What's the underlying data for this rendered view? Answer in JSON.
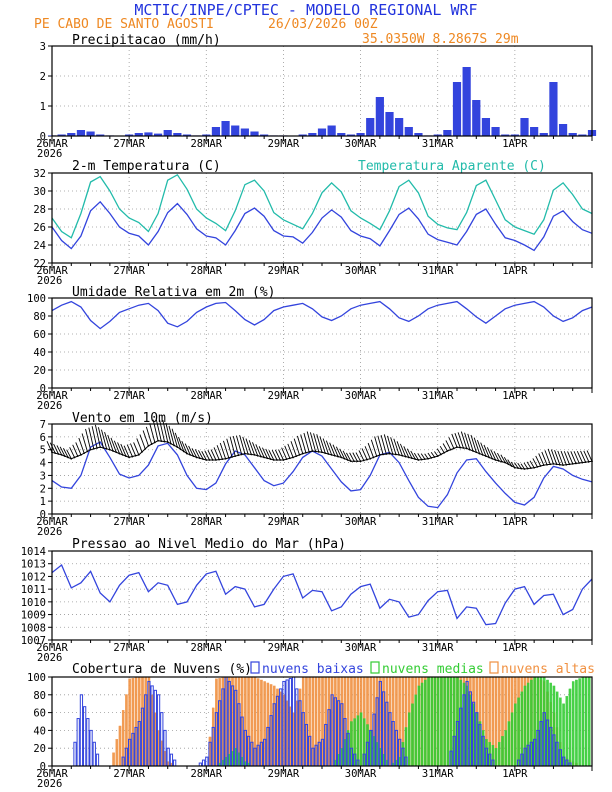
{
  "header": {
    "title": "MCTIC/INPE/CPTEC - MODELO REGIONAL WRF",
    "location": "PE CABO DE SANTO AGOSTI",
    "run": "26/03/2026 00Z",
    "coords": "35.0350W 8.2867S 29m"
  },
  "colors": {
    "blue": "#3344dd",
    "cyan": "#22bbaa",
    "orange": "#f09040",
    "green": "#33cc33",
    "title_blue": "#2233dd",
    "title_orange": "#ee8822"
  },
  "x_axis": {
    "labels": [
      "26MAR",
      "27MAR",
      "28MAR",
      "29MAR",
      "30MAR",
      "31MAR",
      "1APR"
    ],
    "year": "2026"
  },
  "chart_data": [
    {
      "type": "bar",
      "title": "Precipitacao (mm/h)",
      "x_unit": "hours since 26/03/2026 00Z (3-hourly)",
      "ylim": [
        0,
        3
      ],
      "yticks": [
        "0",
        "1",
        "2",
        "3"
      ],
      "x": [
        0,
        3,
        6,
        9,
        12,
        15,
        18,
        21,
        24,
        27,
        30,
        33,
        36,
        39,
        42,
        45,
        48,
        51,
        54,
        57,
        60,
        63,
        66,
        69,
        72,
        75,
        78,
        81,
        84,
        87,
        90,
        93,
        96,
        99,
        102,
        105,
        108,
        111,
        114,
        117,
        120,
        123,
        126,
        129,
        132,
        135,
        138,
        141,
        144,
        147,
        150,
        153,
        156,
        159,
        162,
        165,
        168
      ],
      "values": [
        0.02,
        0.05,
        0.1,
        0.2,
        0.15,
        0.05,
        0.02,
        0.0,
        0.05,
        0.1,
        0.12,
        0.08,
        0.2,
        0.1,
        0.05,
        0.02,
        0.05,
        0.3,
        0.5,
        0.35,
        0.25,
        0.15,
        0.05,
        0.02,
        0.02,
        0.0,
        0.05,
        0.1,
        0.25,
        0.35,
        0.1,
        0.05,
        0.1,
        0.6,
        1.3,
        0.8,
        0.6,
        0.3,
        0.1,
        0.02,
        0.05,
        0.2,
        1.8,
        2.3,
        1.2,
        0.6,
        0.3,
        0.05,
        0.05,
        0.6,
        0.3,
        0.1,
        1.8,
        0.4,
        0.1,
        0.05,
        0.2
      ]
    },
    {
      "type": "line",
      "title": "2-m Temperatura (C)",
      "ylim": [
        22,
        32
      ],
      "yticks": [
        "22",
        "24",
        "26",
        "28",
        "30",
        "32"
      ],
      "x": [
        0,
        3,
        6,
        9,
        12,
        15,
        18,
        21,
        24,
        27,
        30,
        33,
        36,
        39,
        42,
        45,
        48,
        51,
        54,
        57,
        60,
        63,
        66,
        69,
        72,
        75,
        78,
        81,
        84,
        87,
        90,
        93,
        96,
        99,
        102,
        105,
        108,
        111,
        114,
        117,
        120,
        123,
        126,
        129,
        132,
        135,
        138,
        141,
        144,
        147,
        150,
        153,
        156,
        159,
        162,
        165,
        168
      ],
      "series": [
        {
          "name": "2-m Temperatura (C)",
          "color": "#3344dd",
          "values": [
            26.0,
            24.5,
            23.6,
            25.0,
            27.8,
            28.8,
            27.5,
            26.0,
            25.3,
            25.0,
            24.0,
            25.5,
            27.6,
            28.6,
            27.4,
            25.8,
            25.0,
            24.8,
            24.0,
            25.6,
            27.5,
            28.1,
            27.2,
            25.6,
            25.0,
            24.9,
            24.2,
            25.4,
            27.0,
            27.9,
            27.1,
            25.6,
            25.0,
            24.7,
            23.9,
            25.6,
            27.4,
            28.1,
            26.9,
            25.2,
            24.6,
            24.3,
            24.0,
            25.5,
            27.4,
            28.0,
            26.3,
            24.8,
            24.5,
            24.0,
            23.4,
            24.9,
            27.2,
            27.8,
            26.6,
            25.7,
            25.3
          ]
        },
        {
          "name": "Temperatura Aparente (C)",
          "color": "#22bbaa",
          "values": [
            27.0,
            25.5,
            24.8,
            27.5,
            31.0,
            31.6,
            30.0,
            28.0,
            27.0,
            26.5,
            25.5,
            27.5,
            31.2,
            31.8,
            30.2,
            28.0,
            27.0,
            26.4,
            25.6,
            27.8,
            30.7,
            31.2,
            30.0,
            27.6,
            26.8,
            26.3,
            25.8,
            27.5,
            29.8,
            30.9,
            29.9,
            27.8,
            27.0,
            26.4,
            25.7,
            27.8,
            30.5,
            31.2,
            29.8,
            27.2,
            26.3,
            25.9,
            25.7,
            27.6,
            30.6,
            31.2,
            29.0,
            26.8,
            26.0,
            25.6,
            25.2,
            26.8,
            30.1,
            30.9,
            29.6,
            28.0,
            27.5
          ]
        }
      ]
    },
    {
      "type": "line",
      "title": "Umidade Relativa em 2m (%)",
      "ylim": [
        0,
        100
      ],
      "yticks": [
        "0",
        "20",
        "40",
        "60",
        "80",
        "100"
      ],
      "x": [
        0,
        3,
        6,
        9,
        12,
        15,
        18,
        21,
        24,
        27,
        30,
        33,
        36,
        39,
        42,
        45,
        48,
        51,
        54,
        57,
        60,
        63,
        66,
        69,
        72,
        75,
        78,
        81,
        84,
        87,
        90,
        93,
        96,
        99,
        102,
        105,
        108,
        111,
        114,
        117,
        120,
        123,
        126,
        129,
        132,
        135,
        138,
        141,
        144,
        147,
        150,
        153,
        156,
        159,
        162,
        165,
        168
      ],
      "series": [
        {
          "name": "Umidade Relativa",
          "color": "#3344dd",
          "values": [
            86,
            92,
            96,
            90,
            75,
            66,
            74,
            84,
            88,
            92,
            94,
            86,
            72,
            68,
            74,
            84,
            90,
            94,
            95,
            86,
            76,
            70,
            76,
            86,
            90,
            92,
            94,
            88,
            79,
            75,
            80,
            88,
            92,
            94,
            96,
            88,
            78,
            74,
            80,
            88,
            92,
            94,
            96,
            88,
            79,
            72,
            80,
            88,
            92,
            94,
            96,
            90,
            80,
            74,
            78,
            86,
            90
          ]
        }
      ]
    },
    {
      "type": "line",
      "title": "Vento em 10m (m/s)",
      "ylim": [
        0,
        7
      ],
      "yticks": [
        "0",
        "1",
        "2",
        "3",
        "4",
        "5",
        "6",
        "7"
      ],
      "x": [
        0,
        3,
        6,
        9,
        12,
        15,
        18,
        21,
        24,
        27,
        30,
        33,
        36,
        39,
        42,
        45,
        48,
        51,
        54,
        57,
        60,
        63,
        66,
        69,
        72,
        75,
        78,
        81,
        84,
        87,
        90,
        93,
        96,
        99,
        102,
        105,
        108,
        111,
        114,
        117,
        120,
        123,
        126,
        129,
        132,
        135,
        138,
        141,
        144,
        147,
        150,
        153,
        156,
        159,
        162,
        165,
        168
      ],
      "series": [
        {
          "name": "Velocidade do vento",
          "color": "#3344dd",
          "values": [
            2.6,
            2.1,
            2.0,
            3.0,
            5.2,
            5.6,
            4.4,
            3.1,
            2.8,
            3.0,
            3.8,
            5.3,
            5.5,
            4.6,
            3.0,
            2.0,
            1.9,
            2.4,
            3.9,
            4.9,
            4.6,
            3.6,
            2.6,
            2.2,
            2.4,
            3.3,
            4.4,
            4.9,
            4.5,
            3.5,
            2.5,
            1.8,
            1.9,
            3.0,
            4.6,
            4.8,
            4.0,
            2.6,
            1.3,
            0.6,
            0.5,
            1.5,
            3.2,
            4.2,
            4.3,
            3.3,
            2.4,
            1.6,
            0.9,
            0.7,
            1.3,
            2.8,
            3.7,
            3.5,
            3.0,
            2.7,
            2.5
          ]
        },
        {
          "name": "Vetor do vento",
          "color": "#000000",
          "values": [
            4.8,
            4.6,
            4.3,
            4.6,
            5.0,
            5.2,
            5.0,
            4.7,
            4.4,
            4.6,
            5.3,
            5.7,
            5.6,
            5.2,
            4.7,
            4.4,
            4.2,
            4.2,
            4.3,
            4.5,
            4.7,
            4.6,
            4.4,
            4.2,
            4.2,
            4.4,
            4.7,
            4.9,
            4.8,
            4.6,
            4.4,
            4.1,
            4.1,
            4.3,
            4.6,
            4.7,
            4.6,
            4.4,
            4.2,
            4.3,
            4.5,
            4.9,
            5.2,
            5.1,
            4.8,
            4.5,
            4.2,
            4.0,
            3.6,
            3.5,
            3.6,
            3.8,
            3.9,
            3.8,
            3.9,
            4.0,
            4.1
          ]
        }
      ]
    },
    {
      "type": "line",
      "title": "Pressao ao Nivel Medio do Mar (hPa)",
      "ylim": [
        1007,
        1014
      ],
      "yticks": [
        "1007",
        "1008",
        "1009",
        "1010",
        "1011",
        "1012",
        "1013",
        "1014"
      ],
      "x": [
        0,
        3,
        6,
        9,
        12,
        15,
        18,
        21,
        24,
        27,
        30,
        33,
        36,
        39,
        42,
        45,
        48,
        51,
        54,
        57,
        60,
        63,
        66,
        69,
        72,
        75,
        78,
        81,
        84,
        87,
        90,
        93,
        96,
        99,
        102,
        105,
        108,
        111,
        114,
        117,
        120,
        123,
        126,
        129,
        132,
        135,
        138,
        141,
        144,
        147,
        150,
        153,
        156,
        159,
        162,
        165,
        168
      ],
      "series": [
        {
          "name": "Pressao",
          "color": "#3344dd",
          "values": [
            1012.3,
            1012.9,
            1011.1,
            1011.5,
            1012.4,
            1010.7,
            1010.0,
            1011.3,
            1012.1,
            1012.3,
            1010.8,
            1011.5,
            1011.3,
            1009.8,
            1010.0,
            1011.3,
            1012.2,
            1012.4,
            1010.6,
            1011.2,
            1011.0,
            1009.6,
            1009.8,
            1011.0,
            1012.0,
            1012.2,
            1010.3,
            1010.9,
            1010.8,
            1009.3,
            1009.6,
            1010.6,
            1011.2,
            1011.4,
            1009.5,
            1010.2,
            1010.0,
            1008.8,
            1009.0,
            1010.1,
            1010.8,
            1010.9,
            1008.7,
            1009.6,
            1009.5,
            1008.2,
            1008.3,
            1009.9,
            1011.0,
            1011.2,
            1009.8,
            1010.5,
            1010.6,
            1009.0,
            1009.4,
            1011.0,
            1011.8
          ]
        }
      ]
    },
    {
      "type": "bar",
      "title": "Cobertura de Nuvens (%)",
      "ylim": [
        0,
        100
      ],
      "yticks": [
        "0",
        "20",
        "40",
        "60",
        "80",
        "100"
      ],
      "legend": [
        "nuvens baixas",
        "nuvens medias",
        "nuvens altas"
      ],
      "x": [
        0,
        3,
        6,
        9,
        12,
        15,
        18,
        21,
        24,
        27,
        30,
        33,
        36,
        39,
        42,
        45,
        48,
        51,
        54,
        57,
        60,
        63,
        66,
        69,
        72,
        75,
        78,
        81,
        84,
        87,
        90,
        93,
        96,
        99,
        102,
        105,
        108,
        111,
        114,
        117,
        120,
        123,
        126,
        129,
        132,
        135,
        138,
        141,
        144,
        147,
        150,
        153,
        156,
        159,
        162,
        165,
        168
      ],
      "series": [
        {
          "name": "nuvens altas",
          "color": "#f09040",
          "values": [
            0,
            0,
            0,
            0,
            0,
            0,
            0,
            45,
            98,
            100,
            100,
            40,
            5,
            0,
            0,
            0,
            0,
            98,
            100,
            100,
            100,
            100,
            95,
            90,
            80,
            60,
            100,
            100,
            100,
            100,
            100,
            100,
            100,
            100,
            100,
            100,
            100,
            100,
            100,
            100,
            100,
            100,
            100,
            100,
            100,
            100,
            100,
            100,
            100,
            100,
            100,
            95,
            60,
            10,
            5,
            0,
            0
          ]
        },
        {
          "name": "nuvens medias",
          "color": "#33cc33",
          "values": [
            0,
            0,
            0,
            0,
            0,
            0,
            0,
            0,
            0,
            0,
            0,
            0,
            0,
            0,
            0,
            0,
            0,
            0,
            10,
            20,
            5,
            0,
            0,
            0,
            0,
            0,
            0,
            0,
            0,
            0,
            20,
            50,
            60,
            40,
            20,
            0,
            10,
            60,
            90,
            100,
            100,
            100,
            100,
            90,
            60,
            30,
            20,
            40,
            70,
            90,
            100,
            100,
            90,
            70,
            95,
            100,
            100
          ]
        },
        {
          "name": "nuvens baixas",
          "color": "#3344dd",
          "values": [
            0,
            0,
            0,
            80,
            40,
            0,
            0,
            0,
            30,
            50,
            95,
            80,
            20,
            0,
            0,
            0,
            10,
            60,
            100,
            85,
            40,
            20,
            30,
            70,
            95,
            100,
            60,
            20,
            30,
            80,
            70,
            20,
            0,
            40,
            95,
            60,
            30,
            0,
            0,
            0,
            0,
            0,
            50,
            95,
            60,
            20,
            0,
            0,
            0,
            20,
            30,
            60,
            35,
            10,
            0,
            0,
            0
          ]
        }
      ]
    }
  ]
}
